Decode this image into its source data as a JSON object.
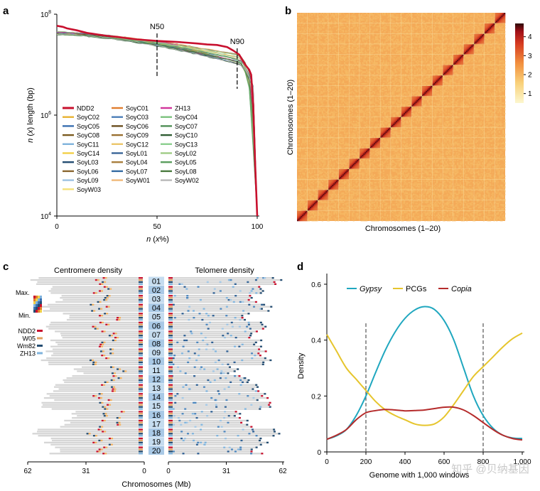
{
  "panels": {
    "a": "a",
    "b": "b",
    "c": "c",
    "d": "d"
  },
  "chart_data": [
    {
      "panel": "a",
      "type": "line",
      "xlabel_pre": "n",
      "xlabel_mid": " (",
      "xlabel_var": "x",
      "xlabel_post": "%)",
      "ylabel_pre": "n",
      "ylabel_mid": " (",
      "ylabel_var": "x",
      "ylabel_post": ") length (bp)",
      "x_ticks": [
        "0",
        "50",
        "100"
      ],
      "y_ticks": [
        {
          "base": "10",
          "exp": "8",
          "value": 8
        },
        {
          "base": "10",
          "exp": "6",
          "value": 6
        },
        {
          "base": "10",
          "exp": "4",
          "value": 4
        }
      ],
      "xlim": [
        0,
        100
      ],
      "ylim_log10": [
        4,
        8
      ],
      "annotations": [
        {
          "label": "N50",
          "x": 50
        },
        {
          "label": "N90",
          "x": 90
        }
      ],
      "series": [
        {
          "name": "NDD2",
          "color": "#c8102e",
          "values": [
            [
              0,
              7.77
            ],
            [
              3,
              7.75
            ],
            [
              5,
              7.72
            ],
            [
              10,
              7.68
            ],
            [
              15,
              7.63
            ],
            [
              20,
              7.6
            ],
            [
              25,
              7.57
            ],
            [
              30,
              7.55
            ],
            [
              40,
              7.5
            ],
            [
              50,
              7.47
            ],
            [
              60,
              7.45
            ],
            [
              70,
              7.42
            ],
            [
              75,
              7.4
            ],
            [
              80,
              7.39
            ],
            [
              85,
              7.35
            ],
            [
              88,
              7.28
            ],
            [
              91,
              7.2
            ],
            [
              94,
              7.0
            ],
            [
              96,
              6.9
            ],
            [
              97,
              6.8
            ],
            [
              98,
              6.2
            ],
            [
              99,
              5.0
            ],
            [
              100,
              4.0
            ]
          ]
        },
        {
          "name": "SoyC02",
          "color": "#e8b330",
          "values": []
        },
        {
          "name": "SoyC05",
          "color": "#3a6fb0",
          "values": []
        },
        {
          "name": "SoyC08",
          "color": "#7a5a1e",
          "values": []
        },
        {
          "name": "SoyC11",
          "color": "#7fb3dc",
          "values": []
        },
        {
          "name": "SoyC14",
          "color": "#f2d048",
          "values": []
        },
        {
          "name": "SoyL03",
          "color": "#244d72",
          "values": []
        },
        {
          "name": "SoyL06",
          "color": "#8a6630",
          "values": []
        },
        {
          "name": "SoyL09",
          "color": "#9cc1e2",
          "values": []
        },
        {
          "name": "SoyW03",
          "color": "#f4e07a",
          "values": []
        },
        {
          "name": "SoyC01",
          "color": "#e07d2e",
          "values": []
        },
        {
          "name": "SoyC03",
          "color": "#4c7eb8",
          "values": []
        },
        {
          "name": "SoyC06",
          "color": "#6b4e1f",
          "values": []
        },
        {
          "name": "SoyC09",
          "color": "#9a7030",
          "values": []
        },
        {
          "name": "SoyC12",
          "color": "#ebc66a",
          "values": []
        },
        {
          "name": "SoyL01",
          "color": "#3a6598",
          "values": []
        },
        {
          "name": "SoyL04",
          "color": "#a97e3d",
          "values": []
        },
        {
          "name": "SoyL07",
          "color": "#356ba2",
          "values": []
        },
        {
          "name": "SoyW01",
          "color": "#f0b97a",
          "values": []
        },
        {
          "name": "ZH13",
          "color": "#d1349b",
          "values": []
        },
        {
          "name": "SoyC04",
          "color": "#7bc27d",
          "values": []
        },
        {
          "name": "SoyC07",
          "color": "#4f8f56",
          "values": []
        },
        {
          "name": "SoyC10",
          "color": "#2f5d33",
          "values": []
        },
        {
          "name": "SoyC13",
          "color": "#8ccf8f",
          "values": []
        },
        {
          "name": "SoyL02",
          "color": "#a0cc86",
          "values": []
        },
        {
          "name": "SoyL05",
          "color": "#5b9e5e",
          "values": []
        },
        {
          "name": "SoyL08",
          "color": "#4a7a3e",
          "values": []
        },
        {
          "name": "SoyW02",
          "color": "#b8b8b8",
          "values": []
        }
      ]
    },
    {
      "panel": "b",
      "type": "heatmap",
      "xlabel": "Chromosomes (1–20)",
      "ylabel": "Chromosomes (1–20)",
      "colorbar_ticks": [
        "1",
        "2",
        "3",
        "4"
      ],
      "colorbar_range": [
        0.5,
        4.7
      ],
      "n_chromosomes": 20,
      "colors": {
        "low": "#fcf3c2",
        "mid": "#f3a25a",
        "high": "#b3121b",
        "max": "#3a0a0a"
      }
    },
    {
      "panel": "c",
      "type": "heatmap",
      "left_title": "Centromere density",
      "right_title": "Telomere density",
      "xlabel": "Chromosomes (Mb)",
      "left_ticks": [
        "62",
        "31",
        "0"
      ],
      "right_ticks": [
        "0",
        "31",
        "62"
      ],
      "scale_max": "Max.",
      "scale_min": "Min.",
      "genomes": [
        {
          "name": "NDD2",
          "color": "#c8102e"
        },
        {
          "name": "W05",
          "color": "#e0a060"
        },
        {
          "name": "Wm82",
          "color": "#244d72"
        },
        {
          "name": "ZH13",
          "color": "#7fb3dc"
        }
      ],
      "chromosomes": [
        "01",
        "02",
        "03",
        "04",
        "05",
        "06",
        "07",
        "08",
        "09",
        "10",
        "11",
        "12",
        "13",
        "14",
        "15",
        "16",
        "17",
        "18",
        "19",
        "20"
      ],
      "chromosome_length_mb": [
        57,
        49,
        45,
        52,
        42,
        51,
        44,
        47,
        50,
        52,
        34,
        40,
        46,
        50,
        51,
        37,
        41,
        56,
        50,
        47
      ]
    },
    {
      "panel": "d",
      "type": "line",
      "ylabel": "Density",
      "xlabel": "Genome with 1,000 windows",
      "x_ticks": [
        0,
        200,
        400,
        600,
        800,
        "1,000"
      ],
      "y_ticks": [
        0,
        0.2,
        0.4,
        0.6
      ],
      "xlim": [
        0,
        1000
      ],
      "ylim": [
        0,
        0.6
      ],
      "vlines": [
        200,
        800
      ],
      "series": [
        {
          "name": "Gypsy",
          "italic": true,
          "color": "#1fa7bf",
          "values": [
            [
              0,
              0.045
            ],
            [
              50,
              0.058
            ],
            [
              100,
              0.08
            ],
            [
              150,
              0.13
            ],
            [
              200,
              0.2
            ],
            [
              250,
              0.285
            ],
            [
              300,
              0.365
            ],
            [
              350,
              0.43
            ],
            [
              400,
              0.478
            ],
            [
              450,
              0.508
            ],
            [
              500,
              0.52
            ],
            [
              550,
              0.51
            ],
            [
              600,
              0.47
            ],
            [
              650,
              0.4
            ],
            [
              700,
              0.3
            ],
            [
              750,
              0.2
            ],
            [
              800,
              0.13
            ],
            [
              850,
              0.085
            ],
            [
              900,
              0.06
            ],
            [
              950,
              0.05
            ],
            [
              1000,
              0.048
            ]
          ]
        },
        {
          "name": "PCGs",
          "italic": false,
          "color": "#e6c52d",
          "values": [
            [
              0,
              0.42
            ],
            [
              50,
              0.36
            ],
            [
              100,
              0.3
            ],
            [
              150,
              0.26
            ],
            [
              200,
              0.22
            ],
            [
              250,
              0.18
            ],
            [
              300,
              0.15
            ],
            [
              350,
              0.13
            ],
            [
              400,
              0.115
            ],
            [
              450,
              0.1
            ],
            [
              500,
              0.095
            ],
            [
              550,
              0.1
            ],
            [
              600,
              0.125
            ],
            [
              650,
              0.17
            ],
            [
              700,
              0.22
            ],
            [
              750,
              0.27
            ],
            [
              800,
              0.305
            ],
            [
              850,
              0.34
            ],
            [
              900,
              0.375
            ],
            [
              950,
              0.405
            ],
            [
              1000,
              0.425
            ]
          ]
        },
        {
          "name": "Copia",
          "italic": true,
          "color": "#b52b2b",
          "values": [
            [
              0,
              0.045
            ],
            [
              50,
              0.06
            ],
            [
              100,
              0.08
            ],
            [
              150,
              0.115
            ],
            [
              200,
              0.14
            ],
            [
              250,
              0.148
            ],
            [
              300,
              0.152
            ],
            [
              350,
              0.15
            ],
            [
              400,
              0.147
            ],
            [
              450,
              0.148
            ],
            [
              500,
              0.15
            ],
            [
              550,
              0.155
            ],
            [
              600,
              0.16
            ],
            [
              650,
              0.16
            ],
            [
              700,
              0.15
            ],
            [
              750,
              0.13
            ],
            [
              800,
              0.105
            ],
            [
              850,
              0.08
            ],
            [
              900,
              0.06
            ],
            [
              950,
              0.048
            ],
            [
              1000,
              0.043
            ]
          ]
        }
      ]
    }
  ],
  "watermark": "知乎 @贝纳基因"
}
